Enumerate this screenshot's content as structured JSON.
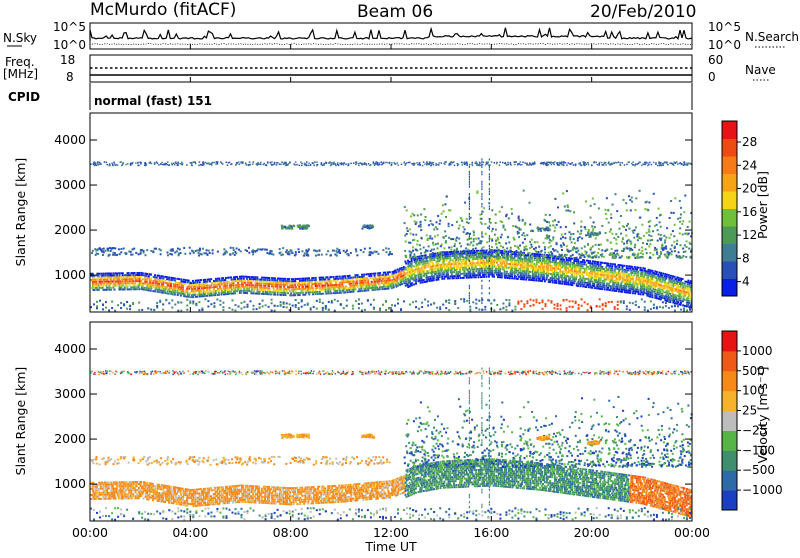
{
  "header": {
    "station": "McMurdo (fitACF)",
    "beam": "Beam 06",
    "date": "20/Feb/2010"
  },
  "summary": {
    "nsky_label": "N.Sky",
    "nsky_ticks": [
      "10^5",
      "10^0"
    ],
    "nsearch_label": "N.Search",
    "nsearch_ticks": [
      "10^5",
      "10^0"
    ],
    "freq_label": "Freq.",
    "freq_unit": "[MHz]",
    "freq_ticks": [
      "18",
      "8"
    ],
    "nave_label": "Nave",
    "nave_ticks": [
      "60",
      "0"
    ],
    "cpid_label": "CPID",
    "cpid_text": "normal (fast) 151"
  },
  "chart_data": [
    {
      "type": "heatmap",
      "name": "power",
      "ylabel": "Slant Range [km]",
      "yticks": [
        "4000",
        "3000",
        "2000",
        "1000"
      ],
      "ylim": [
        180,
        4600
      ],
      "xlim": [
        0,
        24
      ],
      "colorbar_label": "Power [dB]",
      "colorbar_ticks": [
        "28",
        "24",
        "20",
        "16",
        "12",
        "8",
        "4"
      ],
      "colors": [
        "#0a1ee6",
        "#2a50b8",
        "#3f7e92",
        "#4c9a56",
        "#6fbf3a",
        "#f5d418",
        "#f5a418",
        "#f57a18",
        "#ee4a14",
        "#e61414"
      ],
      "band_main": {
        "x": [
          0,
          2,
          4,
          6,
          8,
          10,
          12,
          13,
          14,
          16,
          18,
          20,
          22,
          24
        ],
        "range_km": [
          880,
          900,
          720,
          820,
          760,
          820,
          920,
          1150,
          1250,
          1300,
          1200,
          1050,
          900,
          600
        ]
      }
    },
    {
      "type": "heatmap",
      "name": "velocity",
      "ylabel": "Slant Range [km]",
      "yticks": [
        "4000",
        "3000",
        "2000",
        "1000"
      ],
      "ylim": [
        180,
        4600
      ],
      "xlim": [
        0,
        24
      ],
      "colorbar_label": "Velocity [m s⁻¹]",
      "colorbar_ticks": [
        "1000",
        "500",
        "100",
        "25",
        "−25",
        "−100",
        "−500",
        "−1000"
      ],
      "colors": [
        "#1a3fc0",
        "#2e6aa8",
        "#3f8e6e",
        "#57b548",
        "#bdbdbd",
        "#f5b22a",
        "#f58a18",
        "#ef5a18",
        "#e61414"
      ]
    }
  ],
  "xaxis": {
    "label": "Time UT",
    "ticks": [
      "00:00",
      "04:00",
      "08:00",
      "12:00",
      "16:00",
      "20:00",
      "00:00"
    ]
  }
}
